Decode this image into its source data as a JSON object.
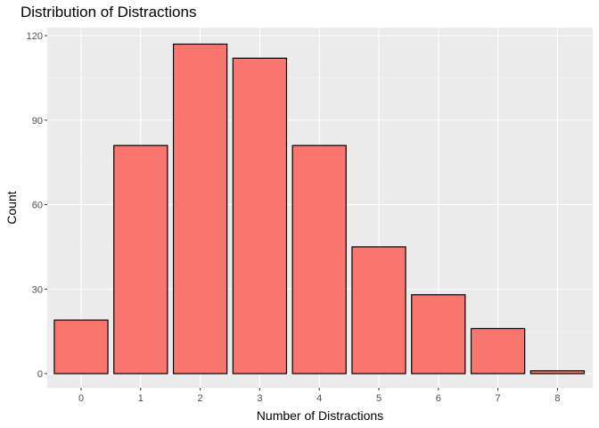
{
  "chart_data": {
    "type": "bar",
    "title": "Distribution of Distractions",
    "xlabel": "Number of Distractions",
    "ylabel": "Count",
    "categories": [
      "0",
      "1",
      "2",
      "3",
      "4",
      "5",
      "6",
      "7",
      "8"
    ],
    "values": [
      19,
      81,
      117,
      112,
      81,
      45,
      28,
      16,
      1
    ],
    "ylim": [
      0,
      120
    ],
    "yticks": [
      "0",
      "30",
      "60",
      "90",
      "120"
    ],
    "grid": true,
    "colors": {
      "bar_fill": "#F8766D",
      "bar_stroke": "#000000",
      "panel_background": "#EBEBEB",
      "grid_major": "#FFFFFF",
      "grid_minor": "#F5F5F5"
    }
  }
}
